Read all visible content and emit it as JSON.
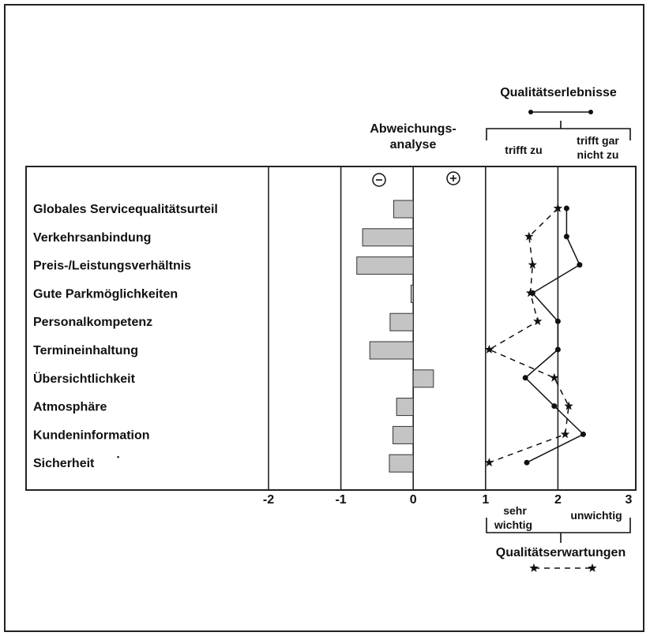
{
  "chart_data": {
    "type": "bar",
    "categories": [
      "Globales Servicequalitätsurteil",
      "Verkehrsanbindung",
      "Preis-/Leistungsverhältnis",
      "Gute Parkmöglichkeiten",
      "Personalkompetenz",
      "Termineinhaltung",
      "Übersichtlichkeit",
      "Atmosphäre",
      "Kundeninformation",
      "Sicherheit"
    ],
    "deviation": {
      "title_line1": "Abweichungs-",
      "title_line2": "analyse",
      "minus_symbol": "−",
      "plus_symbol": "+",
      "values": [
        -0.27,
        -0.7,
        -0.78,
        -0.03,
        -0.32,
        -0.6,
        0.28,
        -0.23,
        -0.28,
        -0.33
      ],
      "xlim": [
        -2.5,
        1
      ],
      "bar_color": "#c4c4c4"
    },
    "x_ticks": [
      "-2",
      "-1",
      "0",
      "1",
      "2",
      "3"
    ],
    "rating": {
      "xlim": [
        1,
        3
      ],
      "series": [
        {
          "name": "Qualitätserlebnisse",
          "style": "solid-dots",
          "values": [
            2.12,
            2.12,
            2.3,
            1.65,
            2.0,
            2.0,
            1.55,
            1.95,
            2.35,
            1.57
          ]
        },
        {
          "name": "Qualitätserwartungen",
          "style": "dashed-stars",
          "values": [
            2.0,
            1.6,
            1.65,
            1.62,
            1.72,
            1.05,
            1.95,
            2.15,
            2.1,
            1.05
          ]
        }
      ],
      "top_left_label": "trifft zu",
      "top_right_label_line1": "trifft gar",
      "top_right_label_line2": "nicht zu",
      "bottom_left_label_line1": "sehr",
      "bottom_left_label_line2": "wichtig",
      "bottom_right_label": "unwichtig"
    },
    "sicherheit_mark": "•"
  }
}
